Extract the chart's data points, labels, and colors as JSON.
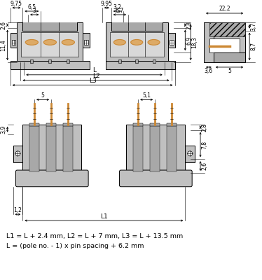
{
  "bg_color": "#ffffff",
  "lc": "#000000",
  "gc": "#c0c0c0",
  "gc2": "#a8a8a8",
  "gc3": "#d8d8d8",
  "hatch_color": "#888888",
  "oc": "#cc8833",
  "formula_line1": "L1 = L + 2.4 mm, L2 = L + 7 mm, L3 = L + 13.5 mm",
  "formula_line2": "L = (pole no. - 1) x pin spacing + 6.2 mm"
}
